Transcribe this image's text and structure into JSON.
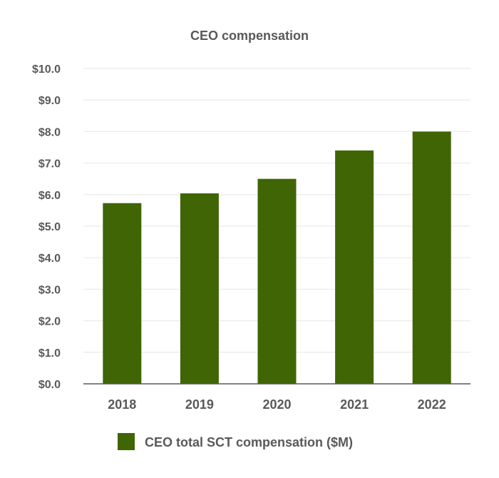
{
  "chart_data": {
    "type": "bar",
    "title": "CEO compensation",
    "categories": [
      "2018",
      "2019",
      "2020",
      "2021",
      "2022"
    ],
    "series": [
      {
        "name": "CEO total SCT compensation ($M)",
        "values": [
          5.73,
          6.04,
          6.5,
          7.4,
          8.0
        ],
        "color": "#3f6505"
      }
    ],
    "ylim": [
      0,
      10
    ],
    "y_ticks": [
      "$0.0",
      "$1.0",
      "$2.0",
      "$3.0",
      "$4.0",
      "$5.0",
      "$6.0",
      "$7.0",
      "$8.0",
      "$9.0",
      "$10.0"
    ],
    "xlabel": "",
    "ylabel": "",
    "grid": true,
    "legend_position": "bottom",
    "colors": {
      "gridline": "#e6e6e6",
      "axis": "#595959",
      "text": "#595959"
    }
  }
}
